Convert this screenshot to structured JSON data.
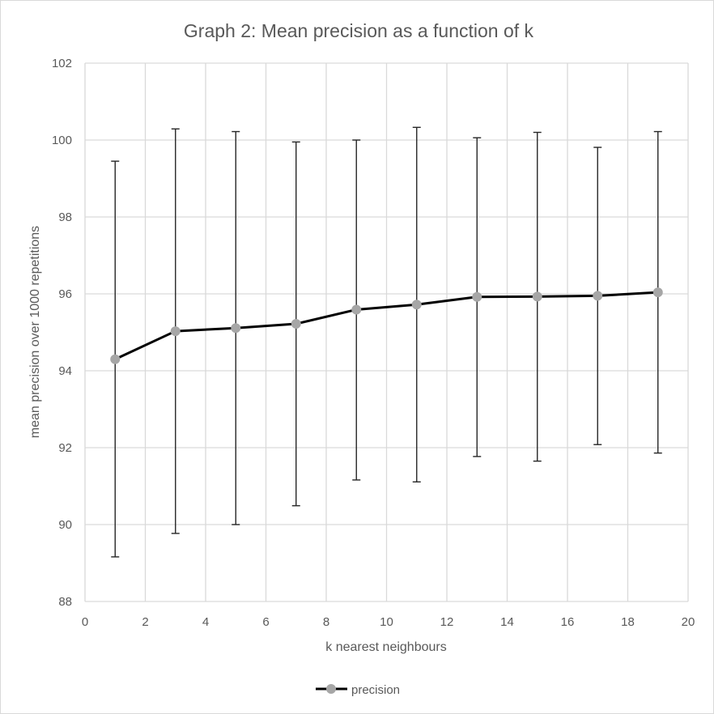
{
  "chart_data": {
    "type": "line",
    "title": "Graph 2: Mean precision as a function of k",
    "xlabel": "k nearest neighbours",
    "ylabel": "mean precision over 1000 repetitions",
    "xlim": [
      0,
      20
    ],
    "ylim": [
      88,
      102
    ],
    "xticks": [
      0,
      2,
      4,
      6,
      8,
      10,
      12,
      14,
      16,
      18,
      20
    ],
    "yticks": [
      88,
      90,
      92,
      94,
      96,
      98,
      100,
      102
    ],
    "grid": true,
    "legend_position": "bottom",
    "series": [
      {
        "name": "precision",
        "x": [
          1,
          3,
          5,
          7,
          9,
          11,
          13,
          15,
          17,
          19
        ],
        "y": [
          94.3,
          95.03,
          95.11,
          95.22,
          95.59,
          95.72,
          95.92,
          95.93,
          95.95,
          96.04
        ],
        "error_low": [
          89.16,
          89.77,
          90.0,
          90.49,
          91.16,
          91.11,
          91.77,
          91.65,
          92.08,
          91.86
        ],
        "error_high": [
          99.45,
          100.29,
          100.22,
          99.95,
          100.0,
          100.33,
          100.06,
          100.2,
          99.81,
          100.22
        ],
        "line_color": "#000000",
        "marker_color": "#a6a6a6",
        "error_bar_color": "#262626"
      }
    ]
  }
}
